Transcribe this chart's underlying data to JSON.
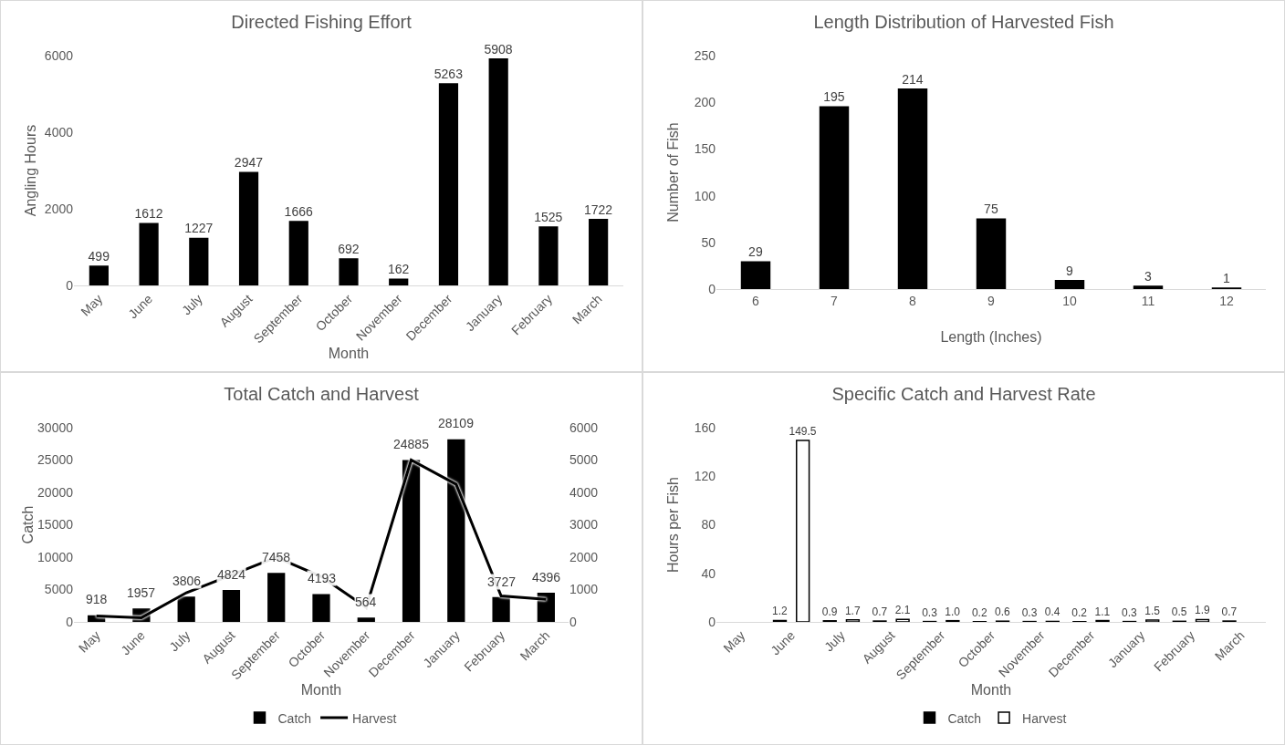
{
  "chart_data": [
    {
      "type": "bar",
      "title": "Directed Fishing Effort",
      "xlabel": "Month",
      "ylabel": "Angling Hours",
      "categories": [
        "May",
        "June",
        "July",
        "August",
        "September",
        "October",
        "November",
        "December",
        "January",
        "February",
        "March"
      ],
      "values": [
        499,
        1612,
        1227,
        2947,
        1666,
        692,
        162,
        5263,
        5908,
        1525,
        1722
      ],
      "color": "#000000",
      "data_labels": true,
      "ylim": [
        0,
        6000
      ],
      "yticks": [
        0,
        2000,
        4000,
        6000
      ],
      "grid": false,
      "legend": false
    },
    {
      "type": "bar",
      "title": "Length Distribution of Harvested Fish",
      "xlabel": "Length (Inches)",
      "ylabel": "Number of Fish",
      "categories": [
        "6",
        "7",
        "8",
        "9",
        "10",
        "11",
        "12"
      ],
      "values": [
        29,
        195,
        214,
        75,
        9,
        3,
        1
      ],
      "color": "#000000",
      "data_labels": true,
      "ylim": [
        0,
        250
      ],
      "yticks": [
        0,
        50,
        100,
        150,
        200,
        250
      ],
      "grid": false,
      "legend": false
    },
    {
      "type": "bar",
      "title": "Total Catch and Harvest",
      "xlabel": "Month",
      "ylabel": "Catch",
      "categories": [
        "May",
        "June",
        "July",
        "August",
        "September",
        "October",
        "November",
        "December",
        "January",
        "February",
        "March"
      ],
      "series": [
        {
          "name": "Catch",
          "type": "bar",
          "color": "#000000",
          "values": [
            918,
            1957,
            3806,
            4824,
            7458,
            4193,
            564,
            24885,
            28109,
            3727,
            4396
          ],
          "value_labels": [
            "918",
            "1957",
            "3806",
            "4824",
            "7458",
            "4193",
            "564",
            "24885",
            "28109",
            "3727",
            "4396"
          ]
        },
        {
          "name": "Harvest",
          "type": "line",
          "axis": "y2",
          "color": "#000000",
          "values": [
            180,
            130,
            900,
            1450,
            2000,
            1400,
            450,
            5000,
            4250,
            800,
            700
          ]
        }
      ],
      "ylim": [
        0,
        30000
      ],
      "yticks": [
        0,
        5000,
        10000,
        15000,
        20000,
        25000,
        30000
      ],
      "y2lim": [
        0,
        6000
      ],
      "y2ticks": [
        0,
        1000,
        2000,
        3000,
        4000,
        5000,
        6000
      ],
      "grid": false,
      "legend": "bottom",
      "marker": "none",
      "line_style": "solid"
    },
    {
      "type": "bar",
      "title": "Specific Catch and Harvest Rate",
      "xlabel": "Month",
      "ylabel": "Hours per Fish",
      "categories": [
        "May",
        "June",
        "July",
        "August",
        "September",
        "October",
        "November",
        "December",
        "January",
        "February",
        "March"
      ],
      "series": [
        {
          "name": "Catch",
          "color": "#000000",
          "values": [
            null,
            1.2,
            0.9,
            0.7,
            0.3,
            0.2,
            0.3,
            0.2,
            0.3,
            0.5,
            0.7
          ],
          "value_labels": [
            null,
            "1.2",
            "0.9",
            "0.7",
            "0.3",
            "0.2",
            "0.3",
            "0.2",
            "0.3",
            "0.5",
            "0.7"
          ]
        },
        {
          "name": "Harvest",
          "color": "#ffffff",
          "values": [
            null,
            149.5,
            1.7,
            2.1,
            1.0,
            0.6,
            0.4,
            1.1,
            1.5,
            1.9,
            null
          ],
          "value_labels": [
            null,
            "149.5",
            "1.7",
            "2.1",
            "1.0",
            "0.6",
            "0.4",
            "1.1",
            "1.5",
            "1.9",
            null
          ]
        }
      ],
      "ylim": [
        0,
        160
      ],
      "yticks": [
        0,
        40,
        80,
        120,
        160
      ],
      "grid": false,
      "legend": "bottom"
    }
  ]
}
